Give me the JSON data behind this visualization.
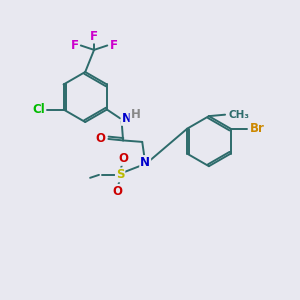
{
  "bg_color": "#e8e8f0",
  "bond_color": "#2d6b6b",
  "atom_colors": {
    "F": "#cc00cc",
    "Cl": "#00bb00",
    "N": "#0000cc",
    "O": "#cc0000",
    "S": "#bbbb00",
    "Br": "#cc8800",
    "H": "#888888",
    "C": "#2d6b6b"
  },
  "font_size": 8.5,
  "bond_lw": 1.4
}
